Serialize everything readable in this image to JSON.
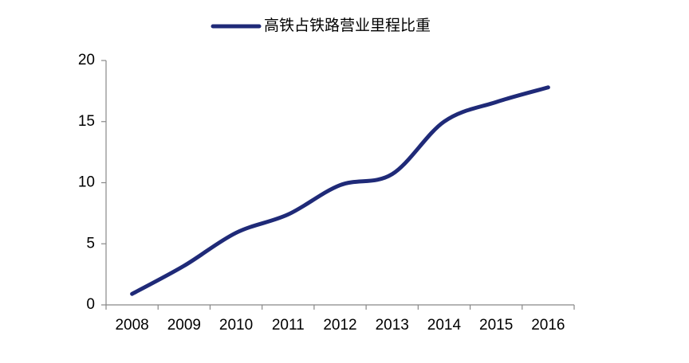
{
  "chart_data": {
    "type": "line",
    "categories": [
      "2008",
      "2009",
      "2010",
      "2011",
      "2012",
      "2013",
      "2014",
      "2015",
      "2016"
    ],
    "series": [
      {
        "name": "高铁占铁路营业里程比重",
        "color": "#1f2a78",
        "values": [
          0.9,
          3.2,
          5.9,
          7.4,
          9.8,
          10.7,
          15.0,
          16.6,
          17.8
        ]
      }
    ],
    "ylim": [
      0,
      20
    ],
    "yticks": [
      0,
      5,
      10,
      15,
      20
    ],
    "grid": false,
    "smooth": true,
    "legend": "top"
  }
}
